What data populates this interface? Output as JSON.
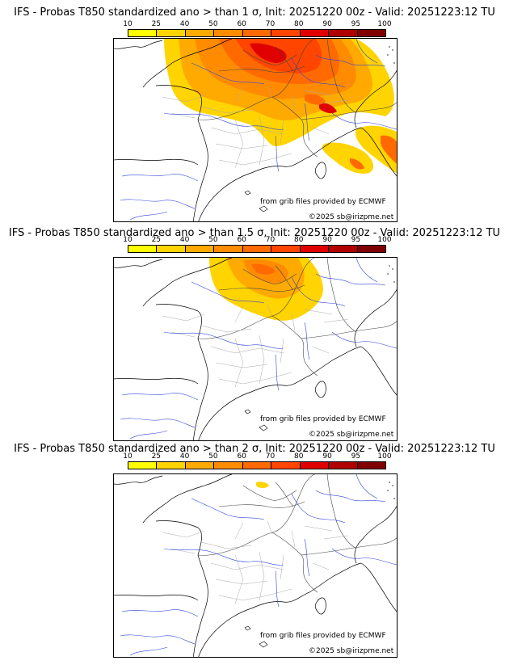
{
  "legend": {
    "ticks": [
      "10",
      "25",
      "40",
      "50",
      "60",
      "70",
      "80",
      "90",
      "95",
      "100"
    ],
    "colors": [
      "#ffff00",
      "#ffd400",
      "#ffaa00",
      "#ff8c00",
      "#ff6a00",
      "#ff4500",
      "#e00000",
      "#b00000",
      "#800000"
    ]
  },
  "panels": [
    {
      "title": "IFS - Probas T850  standardized ano > than 1 σ, Init: 20251220 00z - Valid: 20251223:12 TU",
      "source_text": "from grib files provided by ECMWF",
      "copyright_text": "©2025 sb@irizpme.net"
    },
    {
      "title": "IFS - Probas T850  standardized ano > than 1.5 σ, Init: 20251220 00z - Valid: 20251223:12 TU",
      "source_text": "from grib files provided by ECMWF",
      "copyright_text": "©2025 sb@irizpme.net"
    },
    {
      "title": "IFS - Probas T850  standardized ano > than 2 σ, Init: 20251220 00z - Valid: 20251223:12 TU",
      "source_text": "from grib files provided by ECMWF",
      "copyright_text": "©2025 sb@irizpme.net"
    }
  ]
}
